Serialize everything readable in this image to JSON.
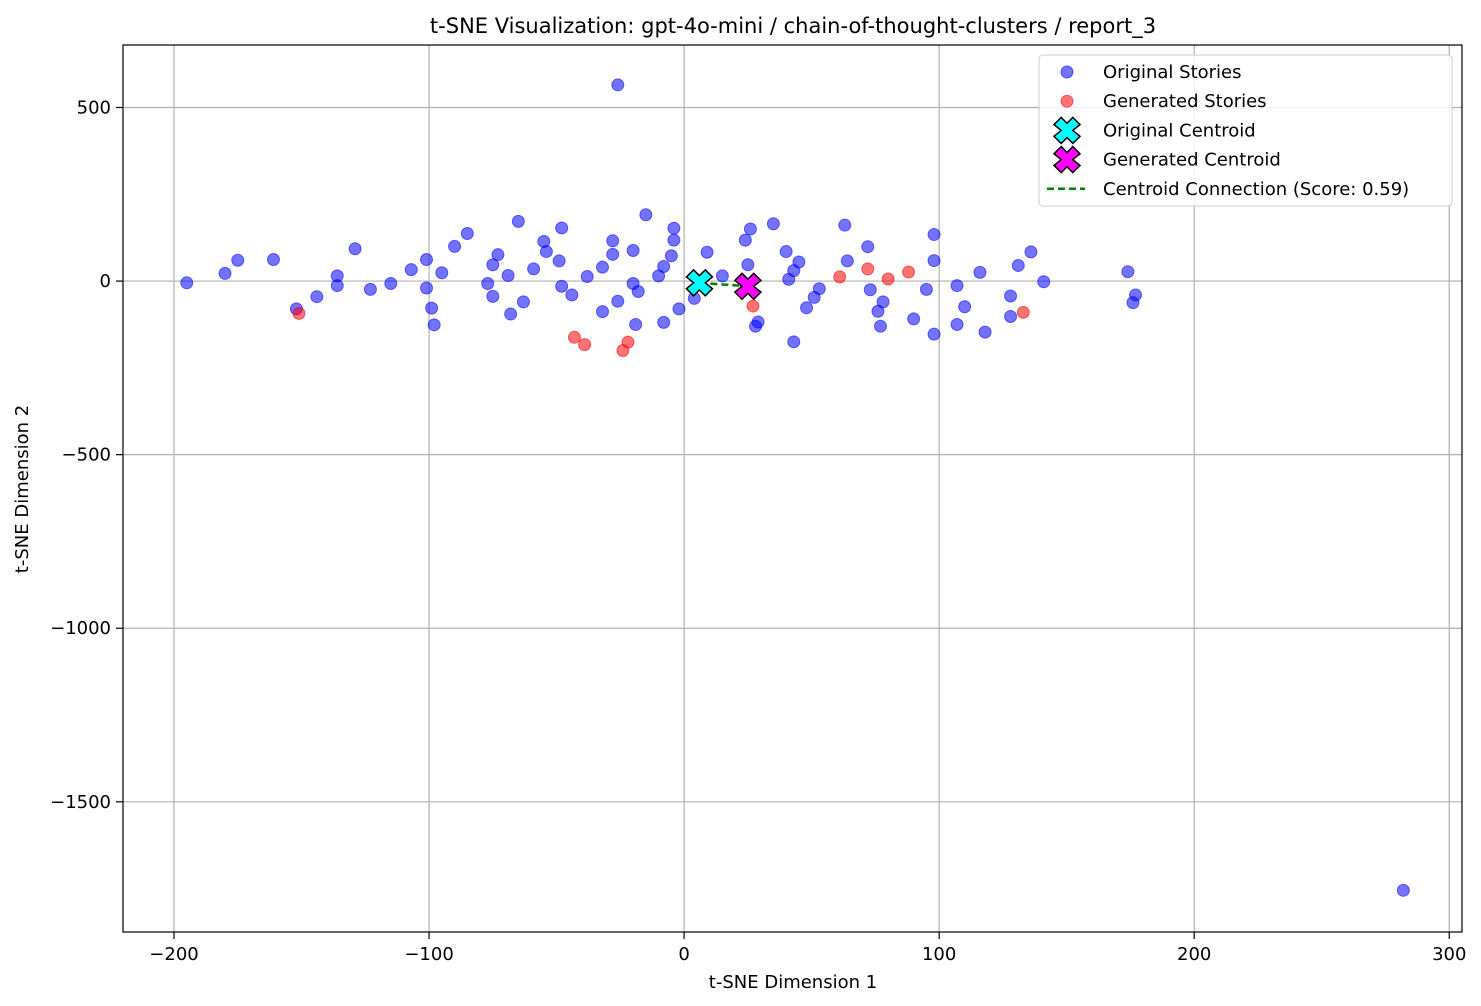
{
  "chart_data": {
    "type": "scatter",
    "title": "t-SNE Visualization: gpt-4o-mini / chain-of-thought-clusters / report_3",
    "xlabel": "t-SNE Dimension 1",
    "ylabel": "t-SNE Dimension 2",
    "xlim": [
      -220,
      305
    ],
    "ylim": [
      -1875,
      680
    ],
    "xticks": [
      -200,
      -100,
      0,
      100,
      200,
      300
    ],
    "xtick_labels": [
      "−200",
      "−100",
      "0",
      "100",
      "200",
      "300"
    ],
    "yticks": [
      500,
      0,
      -500,
      -1000,
      -1500
    ],
    "ytick_labels": [
      "500",
      "0",
      "−500",
      "−1000",
      "−1500"
    ],
    "grid": true,
    "legend_position": "top-right",
    "series": [
      {
        "name": "Original Stories",
        "color": "#0000ff",
        "marker": "circle",
        "points": [
          [
            -195,
            -5
          ],
          [
            -180,
            22
          ],
          [
            -175,
            60
          ],
          [
            -161,
            62
          ],
          [
            -152,
            -80
          ],
          [
            -144,
            -45
          ],
          [
            -136,
            15
          ],
          [
            -136,
            -13
          ],
          [
            -129,
            93
          ],
          [
            -123,
            -24
          ],
          [
            -115,
            -7
          ],
          [
            -107,
            33
          ],
          [
            -101,
            62
          ],
          [
            -101,
            -20
          ],
          [
            -99,
            -78
          ],
          [
            -98,
            -126
          ],
          [
            -95,
            24
          ],
          [
            -90,
            100
          ],
          [
            -85,
            137
          ],
          [
            -77,
            -7
          ],
          [
            -75,
            47
          ],
          [
            -75,
            -44
          ],
          [
            -73,
            76
          ],
          [
            -69,
            16
          ],
          [
            -68,
            -95
          ],
          [
            -65,
            172
          ],
          [
            -63,
            -60
          ],
          [
            -59,
            35
          ],
          [
            -55,
            114
          ],
          [
            -54,
            85
          ],
          [
            -49,
            58
          ],
          [
            -48,
            153
          ],
          [
            -48,
            -15
          ],
          [
            -44,
            -40
          ],
          [
            -38,
            13
          ],
          [
            -32,
            40
          ],
          [
            -32,
            -88
          ],
          [
            -28,
            116
          ],
          [
            -28,
            77
          ],
          [
            -26,
            565
          ],
          [
            -26,
            -58
          ],
          [
            -20,
            88
          ],
          [
            -20,
            -7
          ],
          [
            -19,
            -125
          ],
          [
            -18,
            -30
          ],
          [
            -15,
            191
          ],
          [
            -10,
            15
          ],
          [
            -8,
            42
          ],
          [
            -8,
            -119
          ],
          [
            -5,
            73
          ],
          [
            -4,
            152
          ],
          [
            -4,
            118
          ],
          [
            -2,
            -80
          ],
          [
            4,
            -50
          ],
          [
            9,
            83
          ],
          [
            15,
            15
          ],
          [
            24,
            118
          ],
          [
            25,
            47
          ],
          [
            26,
            150
          ],
          [
            28,
            -130
          ],
          [
            29,
            -118
          ],
          [
            35,
            165
          ],
          [
            40,
            85
          ],
          [
            41,
            5
          ],
          [
            43,
            30
          ],
          [
            43,
            -175
          ],
          [
            45,
            55
          ],
          [
            48,
            -77
          ],
          [
            51,
            -47
          ],
          [
            53,
            -22
          ],
          [
            63,
            161
          ],
          [
            64,
            58
          ],
          [
            72,
            99
          ],
          [
            73,
            -25
          ],
          [
            76,
            -87
          ],
          [
            77,
            -130
          ],
          [
            78,
            -60
          ],
          [
            90,
            -109
          ],
          [
            95,
            -24
          ],
          [
            98,
            134
          ],
          [
            98,
            59
          ],
          [
            98,
            -153
          ],
          [
            107,
            -13
          ],
          [
            107,
            -125
          ],
          [
            110,
            -74
          ],
          [
            116,
            25
          ],
          [
            118,
            -147
          ],
          [
            128,
            -43
          ],
          [
            128,
            -102
          ],
          [
            131,
            45
          ],
          [
            136,
            84
          ],
          [
            141,
            -2
          ],
          [
            174,
            27
          ],
          [
            176,
            -62
          ],
          [
            177,
            -40
          ],
          [
            282,
            -1755
          ]
        ]
      },
      {
        "name": "Generated Stories",
        "color": "#ff0000",
        "marker": "circle",
        "points": [
          [
            -151,
            -93
          ],
          [
            -43,
            -162
          ],
          [
            -39,
            -183
          ],
          [
            -24,
            -200
          ],
          [
            -22,
            -176
          ],
          [
            27,
            -72
          ],
          [
            61,
            12
          ],
          [
            72,
            35
          ],
          [
            80,
            6
          ],
          [
            88,
            26
          ],
          [
            133,
            -90
          ]
        ]
      },
      {
        "name": "Original Centroid",
        "color": "#00ffff",
        "marker": "X",
        "points": [
          [
            6,
            -5
          ]
        ]
      },
      {
        "name": "Generated Centroid",
        "color": "#ff00ff",
        "marker": "X",
        "points": [
          [
            25,
            -15
          ]
        ]
      }
    ],
    "connection": {
      "name": "Centroid Connection (Score: 0.59)",
      "color": "#008000",
      "style": "dashed",
      "from": [
        6,
        -5
      ],
      "to": [
        25,
        -15
      ]
    }
  }
}
